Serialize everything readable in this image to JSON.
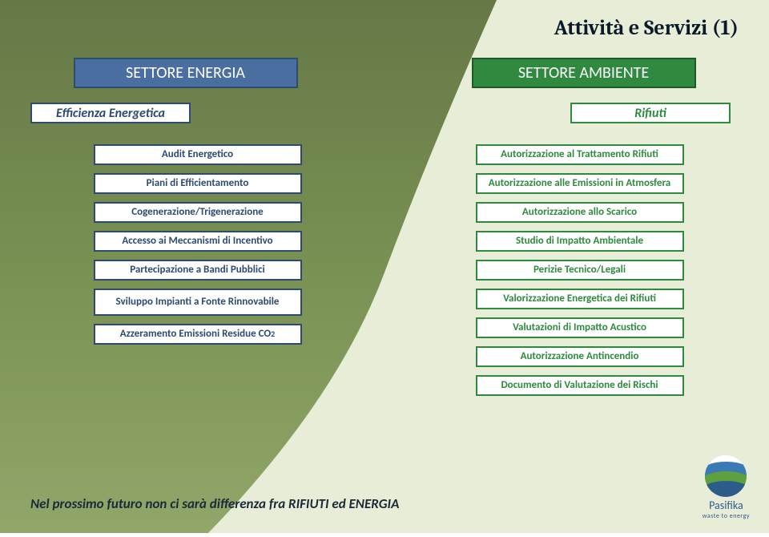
{
  "title": "Attività e Servizi (1)",
  "title_color": "#0a1a2a",
  "background": {
    "left_top": "#5a6e3a",
    "left_mid": "#6f8947",
    "left_bot": "#8aa060",
    "right": "#e8edd8"
  },
  "footer_note": "Nel prossimo futuro non ci sarà differenza fra RIFIUTI ed ENERGIA",
  "footer_color": "#1a2a3a",
  "logo": {
    "name": "Pasifika",
    "tagline": "waste to energy",
    "name_color": "#2e5c8a",
    "circle_bg": "#ffffff",
    "wave1": "#3a7ab5",
    "wave2": "#5fa03f",
    "wave3": "#2e5c8a"
  },
  "left": {
    "sector_label": "SETTORE ENERGIA",
    "sector_bg": "#4a6ea0",
    "sector_border": "#2e4a70",
    "sub_label": "Efficienza Energetica",
    "sub_border": "#2e4a70",
    "sub_color": "#2e4a70",
    "item_border": "#2e4a70",
    "item_color": "#2e4a70",
    "items": [
      {
        "label": "Audit Energetico"
      },
      {
        "label": "Piani di Efficientamento"
      },
      {
        "label": "Cogenerazione/Trigenerazione"
      },
      {
        "label": "Accesso ai Meccanismi di Incentivo"
      },
      {
        "label": "Partecipazione a Bandi Pubblici"
      },
      {
        "label": "Sviluppo Impianti a Fonte Rinnovabile",
        "two_line": true
      },
      {
        "label": "Azzeramento Emissioni Residue CO",
        "sub": "2"
      }
    ]
  },
  "right": {
    "sector_label": "SETTORE AMBIENTE",
    "sector_bg": "#2f8a3f",
    "sector_border": "#1e5a28",
    "sub_label": "Rifiuti",
    "sub_border": "#2f8a3f",
    "sub_color": "#2f8a3f",
    "item_border": "#2f8a3f",
    "item_color": "#2f8a3f",
    "items": [
      {
        "label": "Autorizzazione al Trattamento Rifiuti"
      },
      {
        "label": "Autorizzazione alle Emissioni in Atmosfera"
      },
      {
        "label": "Autorizzazione allo Scarico"
      },
      {
        "label": "Studio di Impatto Ambientale"
      },
      {
        "label": "Perizie Tecnico/Legali"
      },
      {
        "label": "Valorizzazione Energetica dei Rifiuti"
      },
      {
        "label": "Valutazioni di Impatto Acustico"
      },
      {
        "label": "Autorizzazione Antincendio"
      },
      {
        "label": "Documento di Valutazione dei Rischi"
      }
    ]
  }
}
